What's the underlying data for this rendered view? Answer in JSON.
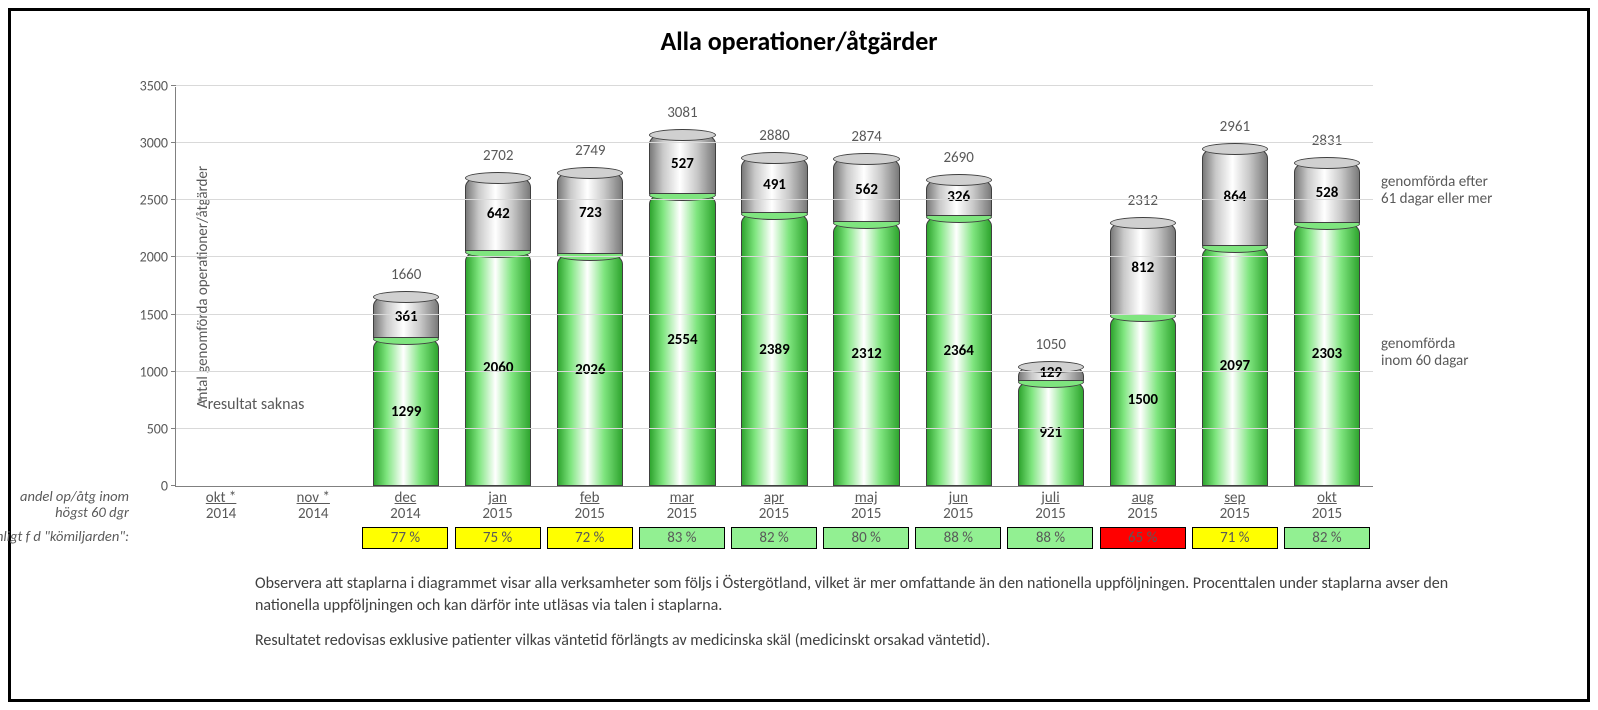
{
  "title": "Alla operationer/åtgärder",
  "chart": {
    "type": "stacked-bar-cylinder",
    "y_axis_title": "Antal genomförda operationer/åtgärder",
    "ylim": [
      0,
      3500
    ],
    "ytick_step": 500,
    "grid_color": "#d9d9d9",
    "axis_color": "#808080",
    "value_font_weight": "bold",
    "value_font_size": 15,
    "total_font_size": 15,
    "series": {
      "green": {
        "key": "inom60",
        "label": "genomförda\ninom 60 dagar",
        "gradient": [
          "#2fa52f",
          "#7fe57f",
          "#ffffff",
          "#7fe57f",
          "#2fa52f"
        ],
        "top_fill": "#7fe57f"
      },
      "gray": {
        "key": "efter61",
        "label": "genomförda efter\n61 dagar eller mer",
        "gradient": [
          "#7a7a7a",
          "#c9c9c9",
          "#ffffff",
          "#c9c9c9",
          "#7a7a7a"
        ],
        "top_fill": "#d0d0d0"
      }
    },
    "categories": [
      {
        "month": "okt *",
        "year": "2014",
        "missing": true
      },
      {
        "month": "nov *",
        "year": "2014",
        "missing": true
      },
      {
        "month": "dec",
        "year": "2014",
        "inom60": 1299,
        "efter61": 361,
        "total": 1660,
        "pct": "77 %",
        "pct_bg": "#ffff00"
      },
      {
        "month": "jan",
        "year": "2015",
        "inom60": 2060,
        "efter61": 642,
        "total": 2702,
        "pct": "75 %",
        "pct_bg": "#ffff00"
      },
      {
        "month": "feb",
        "year": "2015",
        "inom60": 2026,
        "efter61": 723,
        "total": 2749,
        "pct": "72 %",
        "pct_bg": "#ffff00"
      },
      {
        "month": "mar",
        "year": "2015",
        "inom60": 2554,
        "efter61": 527,
        "total": 3081,
        "pct": "83 %",
        "pct_bg": "#92f092"
      },
      {
        "month": "apr",
        "year": "2015",
        "inom60": 2389,
        "efter61": 491,
        "total": 2880,
        "pct": "82 %",
        "pct_bg": "#92f092"
      },
      {
        "month": "maj",
        "year": "2015",
        "inom60": 2312,
        "efter61": 562,
        "total": 2874,
        "pct": "80 %",
        "pct_bg": "#92f092"
      },
      {
        "month": "jun",
        "year": "2015",
        "inom60": 2364,
        "efter61": 326,
        "total": 2690,
        "pct": "88 %",
        "pct_bg": "#92f092"
      },
      {
        "month": "juli",
        "year": "2015",
        "inom60": 921,
        "efter61": 129,
        "total": 1050,
        "pct": "88 %",
        "pct_bg": "#92f092"
      },
      {
        "month": "aug",
        "year": "2015",
        "inom60": 1500,
        "efter61": 812,
        "total": 2312,
        "pct": "65 %",
        "pct_bg": "#ff0000"
      },
      {
        "month": "sep",
        "year": "2015",
        "inom60": 2097,
        "efter61": 864,
        "total": 2961,
        "pct": "71 %",
        "pct_bg": "#ffff00"
      },
      {
        "month": "okt",
        "year": "2015",
        "inom60": 2303,
        "efter61": 528,
        "total": 2831,
        "pct": "82 %",
        "pct_bg": "#92f092"
      }
    ],
    "missing_note": "*  resultat saknas"
  },
  "row_labels": {
    "line1": "andel op/åtg inom",
    "line2": "högst 60 dgr",
    "line3": "enligt  f d \"kömiljarden\":"
  },
  "legend": {
    "top": "genomförda efter\n61 dagar eller mer",
    "bottom": "genomförda\ninom 60 dagar"
  },
  "footer": {
    "p1": "Observera att staplarna i diagrammet visar alla verksamheter som följs i Östergötland, vilket är mer omfattande än den nationella uppföljningen. Procenttalen under staplarna avser den nationella uppföljningen och kan därför inte utläsas via talen i staplarna.",
    "p2": "Resultatet redovisas exklusive patienter vilkas väntetid förlängts av medicinska skäl (medicinskt  orsakad väntetid)."
  }
}
